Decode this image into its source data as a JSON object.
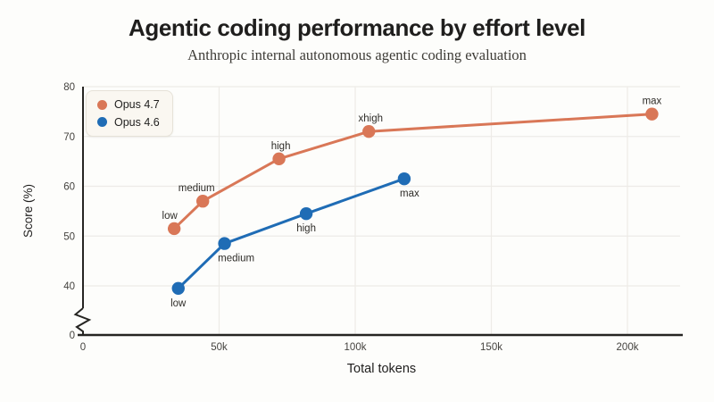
{
  "page": {
    "title": "Agentic coding performance by effort level",
    "subtitle": "Anthropic internal autonomous agentic coding evaluation"
  },
  "chart_data": {
    "type": "line",
    "title": "Agentic coding performance by effort level",
    "subtitle": "Anthropic internal autonomous agentic coding evaluation",
    "xlabel": "Total tokens",
    "ylabel": "Score (%)",
    "grid": true,
    "legend_position": "top-left",
    "x_axis": {
      "label": "Total tokens",
      "range": [
        0,
        219000
      ],
      "ticks": [
        {
          "value": 0,
          "label": "0"
        },
        {
          "value": 50000,
          "label": "50k"
        },
        {
          "value": 100000,
          "label": "100k"
        },
        {
          "value": 150000,
          "label": "150k"
        },
        {
          "value": 200000,
          "label": "200k"
        }
      ]
    },
    "y_axis": {
      "label": "Score (%)",
      "broken_axis": true,
      "displayed_range": [
        40,
        80
      ],
      "ticks": [
        0,
        40,
        50,
        60,
        70,
        80
      ]
    },
    "colors": {
      "background": "#fdfdfb",
      "grid": "#edebe7",
      "axis": "#262522",
      "tick_text": "#45433f",
      "label_text": "#2e2c28",
      "orange": "#d97757",
      "blue": "#1f6cb5"
    },
    "series": [
      {
        "name": "Opus 4.7",
        "color": "#d97757",
        "points": [
          {
            "label": "low",
            "x": 33500,
            "y": 51.5,
            "label_pos": "above",
            "label_dx": -5
          },
          {
            "label": "medium",
            "x": 44000,
            "y": 57,
            "label_pos": "above",
            "label_dx": -7
          },
          {
            "label": "high",
            "x": 72000,
            "y": 65.5,
            "label_pos": "above",
            "label_dx": 2
          },
          {
            "label": "xhigh",
            "x": 105000,
            "y": 71,
            "label_pos": "above",
            "label_dx": 2
          },
          {
            "label": "max",
            "x": 209000,
            "y": 74.5,
            "label_pos": "above",
            "label_dx": 0
          }
        ]
      },
      {
        "name": "Opus 4.6",
        "color": "#1f6cb5",
        "points": [
          {
            "label": "low",
            "x": 35000,
            "y": 39.5,
            "label_pos": "below",
            "label_dx": 0
          },
          {
            "label": "medium",
            "x": 52000,
            "y": 48.5,
            "label_pos": "below",
            "label_dx": 13
          },
          {
            "label": "high",
            "x": 82000,
            "y": 54.5,
            "label_pos": "below",
            "label_dx": 0
          },
          {
            "label": "max",
            "x": 118000,
            "y": 61.5,
            "label_pos": "below",
            "label_dx": 6
          }
        ]
      }
    ]
  }
}
